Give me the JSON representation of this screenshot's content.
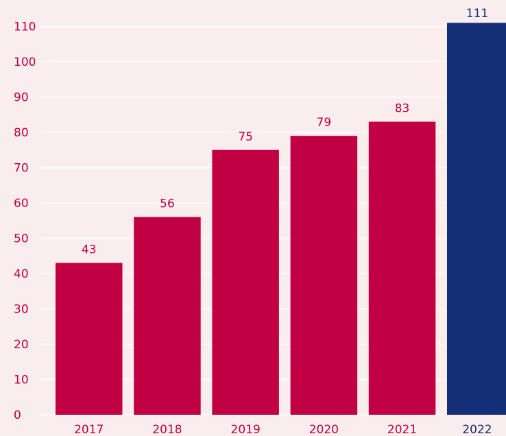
{
  "chart_data": {
    "type": "bar",
    "title": "",
    "xlabel": "",
    "ylabel": "",
    "categories": [
      "2017",
      "2018",
      "2019",
      "2020",
      "2021",
      "2022"
    ],
    "values": [
      43,
      56,
      75,
      79,
      83,
      111
    ],
    "value_labels": [
      "43",
      "56",
      "75",
      "79",
      "83",
      "111"
    ],
    "ylim": [
      0,
      110
    ],
    "yticks": [
      0,
      10,
      20,
      30,
      40,
      50,
      60,
      70,
      80,
      90,
      100,
      110
    ],
    "ytick_labels": [
      "0",
      "10",
      "20",
      "30",
      "40",
      "50",
      "60",
      "70",
      "80",
      "90",
      "100",
      "110"
    ],
    "grid": true,
    "legend": "none",
    "highlight_index": 5
  },
  "colors": {
    "background": "#FAEDED",
    "bar": "#C10043",
    "highlight_bar": "#142D77",
    "gridline": "#FFFFFF",
    "tick_text": "#C10043",
    "highlight_text": "#142D77"
  }
}
